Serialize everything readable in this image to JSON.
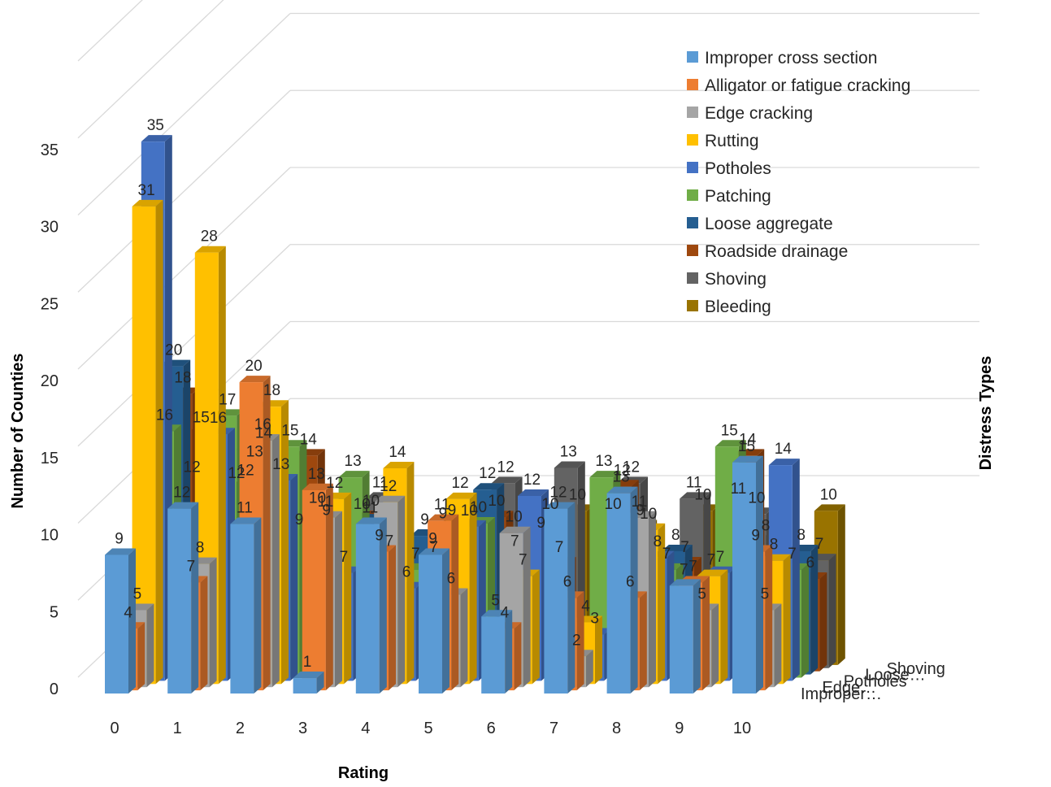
{
  "chart_data": {
    "type": "bar",
    "subtype": "3d-column",
    "title": "",
    "xlabel": "Rating",
    "ylabel": "Number of Counties",
    "zlabel": "Distress Types",
    "ylim": [
      0,
      40
    ],
    "y_ticks": [
      0,
      5,
      10,
      15,
      20,
      25,
      30,
      35
    ],
    "categories": [
      "0",
      "1",
      "2",
      "3",
      "4",
      "5",
      "6",
      "7",
      "8",
      "9",
      "10"
    ],
    "depth_labels": [
      "Improper…",
      "Edge…",
      "Potholes",
      "Loose…",
      "Shoving"
    ],
    "legend_position": "top-right",
    "grid": true,
    "series": [
      {
        "name": "Improper cross section",
        "color": "#5B9BD5",
        "values": [
          9,
          12,
          11,
          1,
          11,
          9,
          5,
          12,
          13,
          7,
          15
        ]
      },
      {
        "name": "Alligator or fatigue cracking",
        "color": "#ED7D31",
        "values": [
          4,
          7,
          20,
          13,
          9,
          11,
          4,
          6,
          6,
          7,
          9
        ]
      },
      {
        "name": "Edge cracking",
        "color": "#A5A5A5",
        "values": [
          5,
          8,
          16,
          11,
          12,
          6,
          10,
          2,
          11,
          5,
          5
        ]
      },
      {
        "name": "Rutting",
        "color": "#FFC000",
        "values": [
          31,
          28,
          18,
          12,
          14,
          12,
          7,
          4,
          10,
          7,
          8
        ]
      },
      {
        "name": "Potholes",
        "color": "#4472C4",
        "values": [
          35,
          16,
          13,
          7,
          6,
          10,
          12,
          3,
          8,
          7,
          14
        ]
      },
      {
        "name": "Patching",
        "color": "#70AD47",
        "values": [
          16,
          17,
          15,
          13,
          7,
          10,
          9,
          13,
          7,
          15,
          7
        ]
      },
      {
        "name": "Loose aggregate",
        "color": "#255E91",
        "values": [
          20,
          12,
          9,
          10,
          9,
          12,
          10,
          10,
          8,
          11,
          8
        ]
      },
      {
        "name": "Roadside drainage",
        "color": "#9E480E",
        "values": [
          18,
          12,
          14,
          10,
          7,
          10,
          7,
          12,
          7,
          14,
          6
        ]
      },
      {
        "name": "Shoving",
        "color": "#636363",
        "values": [
          12,
          13,
          10,
          11,
          9,
          12,
          13,
          12,
          11,
          10,
          7
        ]
      },
      {
        "name": "Bleeding",
        "color": "#997300",
        "values": [
          15,
          14,
          9,
          7,
          9,
          7,
          10,
          9,
          10,
          8,
          10
        ]
      }
    ]
  }
}
